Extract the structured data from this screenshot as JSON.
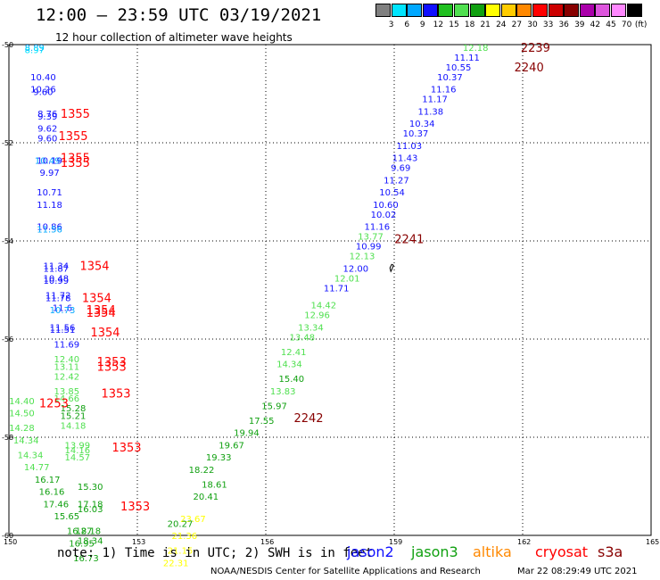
{
  "header": {
    "title": "12:00 – 23:59 UTC 03/19/2021",
    "subtitle": "12 hour collection of altimeter wave heights"
  },
  "legend": {
    "ticks": [
      "3",
      "6",
      "9",
      "12",
      "15",
      "18",
      "21",
      "24",
      "27",
      "30",
      "33",
      "36",
      "39",
      "42",
      "45",
      "70"
    ],
    "unit": "(ft)",
    "colors": [
      "#808080",
      "#00e5ff",
      "#00a8ff",
      "#1010ff",
      "#20c020",
      "#50e050",
      "#10a010",
      "#ffff00",
      "#ffcc00",
      "#ff8800",
      "#ff0000",
      "#cc0000",
      "#880000",
      "#aa00aa",
      "#dd55dd",
      "#ff88ff",
      "#000000"
    ]
  },
  "axes": {
    "lat_labels": [
      "-50",
      "-52",
      "-54",
      "-56",
      "-58",
      "-60"
    ],
    "lon_labels": [
      "150",
      "153",
      "156",
      "159",
      "162",
      "165"
    ]
  },
  "chart_data": {
    "type": "scatter",
    "xlim": [
      150,
      165
    ],
    "ylim": [
      -60,
      -50
    ],
    "points": [
      {
        "lon": 150.6,
        "lat": -50.05,
        "text": "8.89",
        "color": "#00a8ff"
      },
      {
        "lon": 150.6,
        "lat": -50.1,
        "text": "8.97",
        "color": "#00e5ff"
      },
      {
        "lon": 150.8,
        "lat": -50.65,
        "text": "10.40",
        "color": "#1010ff"
      },
      {
        "lon": 150.8,
        "lat": -50.9,
        "text": "10.26",
        "color": "#1010ff"
      },
      {
        "lon": 150.8,
        "lat": -50.95,
        "text": "9.60",
        "color": "#1010ff"
      },
      {
        "lon": 150.9,
        "lat": -51.4,
        "text": "8.76",
        "color": "#1010ff"
      },
      {
        "lon": 150.9,
        "lat": -51.45,
        "text": "9.39",
        "color": "#1010ff"
      },
      {
        "lon": 150.9,
        "lat": -51.7,
        "text": "9.62",
        "color": "#1010ff"
      },
      {
        "lon": 150.9,
        "lat": -51.9,
        "text": "9.60",
        "color": "#1010ff"
      },
      {
        "lon": 150.9,
        "lat": -52.35,
        "text": "10.49",
        "color": "#00a8ff"
      },
      {
        "lon": 150.95,
        "lat": -52.35,
        "text": "10.19",
        "color": "#1010ff"
      },
      {
        "lon": 150.95,
        "lat": -52.6,
        "text": "9.97",
        "color": "#1010ff"
      },
      {
        "lon": 150.95,
        "lat": -53.0,
        "text": "10.71",
        "color": "#1010ff"
      },
      {
        "lon": 150.95,
        "lat": -53.25,
        "text": "11.18",
        "color": "#1010ff"
      },
      {
        "lon": 150.95,
        "lat": -53.7,
        "text": "10.86",
        "color": "#1010ff"
      },
      {
        "lon": 150.95,
        "lat": -53.75,
        "text": "11.56",
        "color": "#00a8ff"
      },
      {
        "lon": 151.1,
        "lat": -54.5,
        "text": "11.34",
        "color": "#1010ff"
      },
      {
        "lon": 151.1,
        "lat": -54.55,
        "text": "11.87",
        "color": "#1010ff"
      },
      {
        "lon": 151.1,
        "lat": -54.75,
        "text": "10.48",
        "color": "#1010ff"
      },
      {
        "lon": 151.1,
        "lat": -54.8,
        "text": "10.99",
        "color": "#1010ff"
      },
      {
        "lon": 151.15,
        "lat": -55.1,
        "text": "11.72",
        "color": "#1010ff"
      },
      {
        "lon": 151.15,
        "lat": -55.15,
        "text": "11.78",
        "color": "#1010ff"
      },
      {
        "lon": 151.25,
        "lat": -55.35,
        "text": "11.6",
        "color": "#1010ff"
      },
      {
        "lon": 151.25,
        "lat": -55.4,
        "text": "10.73",
        "color": "#00a8ff"
      },
      {
        "lon": 151.25,
        "lat": -55.75,
        "text": "11.56",
        "color": "#1010ff"
      },
      {
        "lon": 151.25,
        "lat": -55.8,
        "text": "11.51",
        "color": "#1010ff"
      },
      {
        "lon": 151.35,
        "lat": -56.1,
        "text": "11.69",
        "color": "#1010ff"
      },
      {
        "lon": 151.35,
        "lat": -56.4,
        "text": "12.40",
        "color": "#50e050"
      },
      {
        "lon": 151.35,
        "lat": -56.55,
        "text": "13.11",
        "color": "#50e050"
      },
      {
        "lon": 151.35,
        "lat": -56.75,
        "text": "12.42",
        "color": "#50e050"
      },
      {
        "lon": 151.35,
        "lat": -57.05,
        "text": "13.85",
        "color": "#50e050"
      },
      {
        "lon": 151.35,
        "lat": -57.2,
        "text": "14.66",
        "color": "#50e050"
      },
      {
        "lon": 151.5,
        "lat": -57.4,
        "text": "15.28",
        "color": "#10a010"
      },
      {
        "lon": 151.5,
        "lat": -57.55,
        "text": "15.21",
        "color": "#10a010"
      },
      {
        "lon": 151.5,
        "lat": -57.75,
        "text": "14.18",
        "color": "#50e050"
      },
      {
        "lon": 150.3,
        "lat": -57.25,
        "text": "14.40",
        "color": "#50e050"
      },
      {
        "lon": 150.3,
        "lat": -57.5,
        "text": "14.50",
        "color": "#50e050"
      },
      {
        "lon": 150.3,
        "lat": -57.8,
        "text": "14.28",
        "color": "#50e050"
      },
      {
        "lon": 150.4,
        "lat": -58.05,
        "text": "14.34",
        "color": "#50e050"
      },
      {
        "lon": 150.5,
        "lat": -58.35,
        "text": "14.34",
        "color": "#50e050"
      },
      {
        "lon": 150.65,
        "lat": -58.6,
        "text": "14.77",
        "color": "#50e050"
      },
      {
        "lon": 150.9,
        "lat": -58.85,
        "text": "16.17",
        "color": "#10a010"
      },
      {
        "lon": 151.0,
        "lat": -59.1,
        "text": "16.16",
        "color": "#10a010"
      },
      {
        "lon": 151.1,
        "lat": -59.35,
        "text": "17.46",
        "color": "#10a010"
      },
      {
        "lon": 151.35,
        "lat": -59.6,
        "text": "15.65",
        "color": "#10a010"
      },
      {
        "lon": 151.6,
        "lat": -58.15,
        "text": "13.99",
        "color": "#50e050"
      },
      {
        "lon": 151.6,
        "lat": -58.25,
        "text": "14.16",
        "color": "#50e050"
      },
      {
        "lon": 151.6,
        "lat": -58.4,
        "text": "14.57",
        "color": "#50e050"
      },
      {
        "lon": 151.9,
        "lat": -59.0,
        "text": "15.30",
        "color": "#10a010"
      },
      {
        "lon": 151.9,
        "lat": -59.35,
        "text": "17.18",
        "color": "#10a010"
      },
      {
        "lon": 151.9,
        "lat": -59.45,
        "text": "16.03",
        "color": "#10a010"
      },
      {
        "lon": 151.65,
        "lat": -59.9,
        "text": "16.27",
        "color": "#10a010"
      },
      {
        "lon": 151.85,
        "lat": -59.9,
        "text": "18.18",
        "color": "#10a010"
      },
      {
        "lon": 151.7,
        "lat": -60.15,
        "text": "16.95",
        "color": "#10a010"
      },
      {
        "lon": 151.9,
        "lat": -60.1,
        "text": "18.34",
        "color": "#10a010"
      },
      {
        "lon": 151.8,
        "lat": -60.45,
        "text": "16.73",
        "color": "#10a010"
      },
      {
        "lon": 154.3,
        "lat": -59.65,
        "text": "23.67",
        "color": "#ffff00"
      },
      {
        "lon": 154.0,
        "lat": -59.75,
        "text": "20.27",
        "color": "#10a010"
      },
      {
        "lon": 154.1,
        "lat": -60.0,
        "text": "21.36",
        "color": "#ffff00"
      },
      {
        "lon": 154.0,
        "lat": -60.3,
        "text": "21.15",
        "color": "#ffff00"
      },
      {
        "lon": 153.9,
        "lat": -60.55,
        "text": "22.31",
        "color": "#ffff00"
      },
      {
        "lon": 154.5,
        "lat": -58.65,
        "text": "18.22",
        "color": "#10a010"
      },
      {
        "lon": 154.8,
        "lat": -58.95,
        "text": "18.61",
        "color": "#10a010"
      },
      {
        "lon": 154.6,
        "lat": -59.2,
        "text": "20.41",
        "color": "#10a010"
      },
      {
        "lon": 154.9,
        "lat": -58.4,
        "text": "19.33",
        "color": "#10a010"
      },
      {
        "lon": 155.2,
        "lat": -58.15,
        "text": "19.67",
        "color": "#10a010"
      },
      {
        "lon": 155.55,
        "lat": -57.9,
        "text": "19.94",
        "color": "#10a010"
      },
      {
        "lon": 155.9,
        "lat": -57.65,
        "text": "17.55",
        "color": "#10a010"
      },
      {
        "lon": 156.2,
        "lat": -57.35,
        "text": "15.97",
        "color": "#10a010"
      },
      {
        "lon": 156.4,
        "lat": -57.05,
        "text": "13.83",
        "color": "#50e050"
      },
      {
        "lon": 156.6,
        "lat": -56.8,
        "text": "15.40",
        "color": "#10a010"
      },
      {
        "lon": 156.55,
        "lat": -56.5,
        "text": "14.34",
        "color": "#50e050"
      },
      {
        "lon": 156.65,
        "lat": -56.25,
        "text": "12.41",
        "color": "#50e050"
      },
      {
        "lon": 156.85,
        "lat": -55.95,
        "text": "13.48",
        "color": "#50e050"
      },
      {
        "lon": 157.05,
        "lat": -55.75,
        "text": "13.34",
        "color": "#50e050"
      },
      {
        "lon": 157.2,
        "lat": -55.5,
        "text": "12.96",
        "color": "#50e050"
      },
      {
        "lon": 157.35,
        "lat": -55.3,
        "text": "14.42",
        "color": "#50e050"
      },
      {
        "lon": 157.65,
        "lat": -54.95,
        "text": "11.71",
        "color": "#1010ff"
      },
      {
        "lon": 157.9,
        "lat": -54.75,
        "text": "12.01",
        "color": "#50e050"
      },
      {
        "lon": 158.1,
        "lat": -54.55,
        "text": "12.00",
        "color": "#1010ff"
      },
      {
        "lon": 158.25,
        "lat": -54.3,
        "text": "12.13",
        "color": "#50e050"
      },
      {
        "lon": 158.4,
        "lat": -54.1,
        "text": "10.99",
        "color": "#1010ff"
      },
      {
        "lon": 158.45,
        "lat": -53.9,
        "text": "13.77",
        "color": "#50e050"
      },
      {
        "lon": 158.6,
        "lat": -53.7,
        "text": "11.16",
        "color": "#1010ff"
      },
      {
        "lon": 158.75,
        "lat": -53.45,
        "text": "10.02",
        "color": "#1010ff"
      },
      {
        "lon": 158.8,
        "lat": -53.25,
        "text": "10.60",
        "color": "#1010ff"
      },
      {
        "lon": 158.95,
        "lat": -53.0,
        "text": "10.54",
        "color": "#1010ff"
      },
      {
        "lon": 159.05,
        "lat": -52.75,
        "text": "11.27",
        "color": "#1010ff"
      },
      {
        "lon": 159.15,
        "lat": -52.5,
        "text": "9.69",
        "color": "#1010ff"
      },
      {
        "lon": 159.25,
        "lat": -52.3,
        "text": "11.43",
        "color": "#1010ff"
      },
      {
        "lon": 159.35,
        "lat": -52.05,
        "text": "11.03",
        "color": "#1010ff"
      },
      {
        "lon": 159.5,
        "lat": -51.8,
        "text": "10.37",
        "color": "#1010ff"
      },
      {
        "lon": 159.65,
        "lat": -51.6,
        "text": "10.34",
        "color": "#1010ff"
      },
      {
        "lon": 159.85,
        "lat": -51.35,
        "text": "11.38",
        "color": "#1010ff"
      },
      {
        "lon": 159.95,
        "lat": -51.1,
        "text": "11.17",
        "color": "#1010ff"
      },
      {
        "lon": 160.15,
        "lat": -50.9,
        "text": "11.16",
        "color": "#1010ff"
      },
      {
        "lon": 160.3,
        "lat": -50.65,
        "text": "10.37",
        "color": "#1010ff"
      },
      {
        "lon": 160.5,
        "lat": -50.45,
        "text": "10.55",
        "color": "#1010ff"
      },
      {
        "lon": 160.7,
        "lat": -50.25,
        "text": "11.11",
        "color": "#1010ff"
      },
      {
        "lon": 160.9,
        "lat": -50.05,
        "text": "12.18",
        "color": "#50e050"
      }
    ],
    "pass_labels": [
      {
        "lon": 151.55,
        "lat": -51.4,
        "text": "1355",
        "color": "#ff0000"
      },
      {
        "lon": 151.5,
        "lat": -51.85,
        "text": "1355",
        "color": "#ff0000"
      },
      {
        "lon": 151.55,
        "lat": -52.3,
        "text": "1355",
        "color": "#ff0000"
      },
      {
        "lon": 151.55,
        "lat": -52.4,
        "text": "1355",
        "color": "#ff0000"
      },
      {
        "lon": 152.0,
        "lat": -54.5,
        "text": "1354",
        "color": "#ff0000"
      },
      {
        "lon": 152.05,
        "lat": -55.15,
        "text": "1354",
        "color": "#ff0000"
      },
      {
        "lon": 152.15,
        "lat": -55.4,
        "text": "1354",
        "color": "#ff0000"
      },
      {
        "lon": 152.15,
        "lat": -55.45,
        "text": "1354",
        "color": "#ff0000"
      },
      {
        "lon": 152.25,
        "lat": -55.85,
        "text": "1354",
        "color": "#ff0000"
      },
      {
        "lon": 152.4,
        "lat": -56.45,
        "text": "1353",
        "color": "#ff0000"
      },
      {
        "lon": 152.4,
        "lat": -56.55,
        "text": "1353",
        "color": "#ff0000"
      },
      {
        "lon": 152.5,
        "lat": -57.1,
        "text": "1353",
        "color": "#ff0000"
      },
      {
        "lon": 151.05,
        "lat": -57.3,
        "text": "1253",
        "color": "#ff0000"
      },
      {
        "lon": 152.75,
        "lat": -58.2,
        "text": "1353",
        "color": "#ff0000"
      },
      {
        "lon": 152.95,
        "lat": -59.4,
        "text": "1353",
        "color": "#ff0000"
      },
      {
        "lon": 157.0,
        "lat": -57.6,
        "text": "2242",
        "color": "#880000"
      },
      {
        "lon": 159.35,
        "lat": -53.95,
        "text": "2241",
        "color": "#880000"
      },
      {
        "lon": 162.15,
        "lat": -50.45,
        "text": "2240",
        "color": "#880000"
      },
      {
        "lon": 162.3,
        "lat": -50.05,
        "text": "2239",
        "color": "#880000"
      }
    ]
  },
  "footer": {
    "note": "note: 1) Time is in UTC; 2) SWH is in feet",
    "satellites": [
      {
        "name": "jason2",
        "color": "#1010ff"
      },
      {
        "name": "jason3",
        "color": "#10a010"
      },
      {
        "name": "altika",
        "color": "#ff8800"
      },
      {
        "name": "cryosat",
        "color": "#ff0000"
      },
      {
        "name": "s3a",
        "color": "#880000"
      }
    ],
    "credit": "NOAA/NESDIS Center for Satellite Applications and Research",
    "timestamp": "Mar 22 08:29:49 UTC 2021"
  }
}
